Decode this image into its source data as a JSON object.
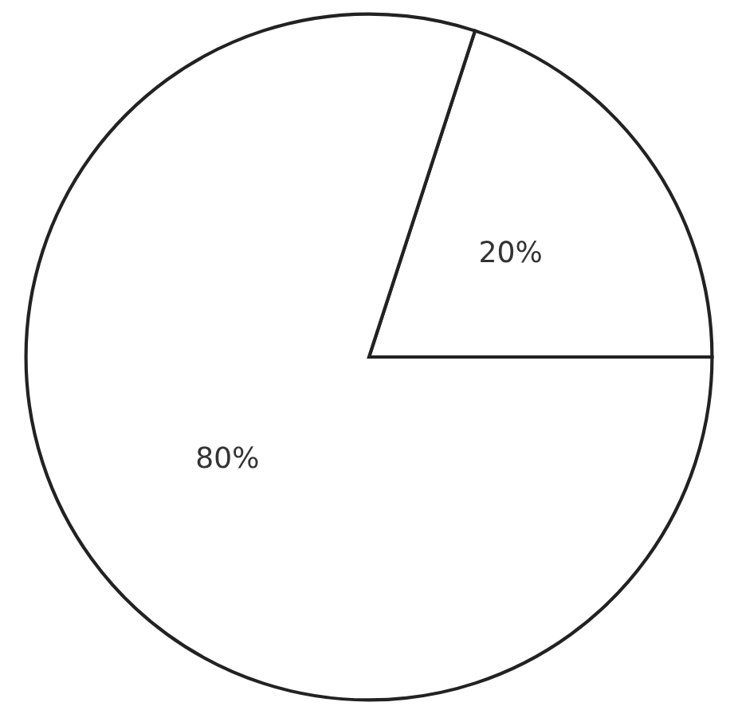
{
  "chart_data": {
    "type": "pie",
    "categories": [
      null,
      null
    ],
    "values": [
      20,
      80
    ],
    "colors": [
      "#ffffff",
      "#ffffff"
    ],
    "value_labels": [
      "20%",
      "80%"
    ]
  }
}
